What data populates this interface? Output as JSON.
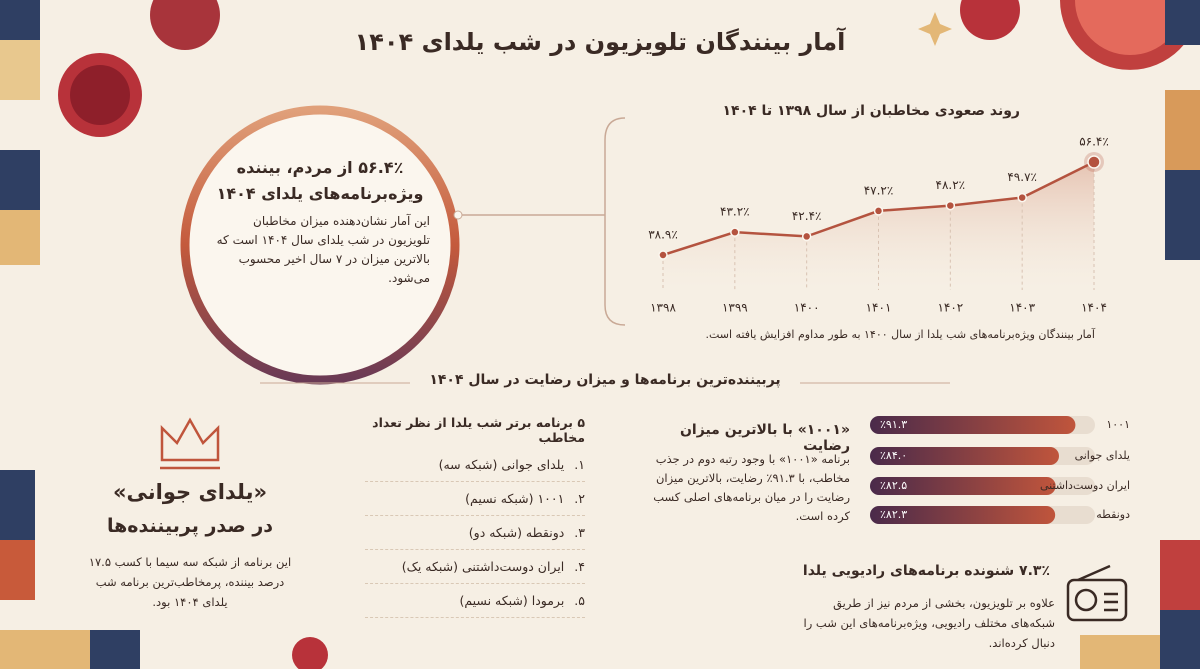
{
  "header": {
    "title": "آمار بینندگان تلویزیون در شب یلدای ۱۴۰۴"
  },
  "highlight": {
    "headline": "۵۶.۴٪ از مردم، بیننده ویژه‌برنامه‌های یلدای ۱۴۰۴",
    "body": "این آمار نشان‌دهنده میزان مخاطبان تلویزیون در شب یلدای سال ۱۴۰۴ است که بالاترین میزان در ۷ سال اخیر محسوب می‌شود."
  },
  "section": {
    "title": "پربیننده‌ترین برنامه‌ها و میزان رضایت در سال ۱۴۰۴"
  },
  "top_show": {
    "headline": "«یلدای جوانی»",
    "subheadline": "در صدر پربیننده‌ها",
    "body": "این برنامه از شبکه سه سیما با کسب ۱۷.۵ درصد بیننده، پرمخاطب‌ترین برنامه شب یلدای ۱۴۰۴ بود."
  },
  "top_list": {
    "title": "۵ برنامه برتر شب یلدا از نظر تعداد مخاطب",
    "items": [
      {
        "num": "۱.",
        "text": "یلدای جوانی (شبکه سه)"
      },
      {
        "num": "۲.",
        "text": "۱۰۰۱ (شبکه نسیم)"
      },
      {
        "num": "۳.",
        "text": "دونقطه (شبکه دو)"
      },
      {
        "num": "۴.",
        "text": "ایران دوست‌داشتنی (شبکه یک)"
      },
      {
        "num": "۵.",
        "text": "برمودا (شبکه نسیم)"
      }
    ]
  },
  "satisfaction": {
    "title": "«۱۰۰۱» با بالاترین میزان رضایت",
    "body": "برنامه «۱۰۰۱» با وجود رتبه دوم در جذب مخاطب، با ۹۱.۳٪ رضایت، بالاترین میزان رضایت را در میان برنامه‌های اصلی کسب کرده است."
  },
  "radio": {
    "title": "۷.۳٪ شنونده برنامه‌های رادیویی یلدا",
    "body": "علاوه بر تلویزیون، بخشی از مردم نیز از طریق شبکه‌های مختلف رادیویی، ویژه‌برنامه‌های این شب را دنبال کرده‌اند."
  },
  "chart_data": [
    {
      "type": "line",
      "title": "روند صعودی مخاطبان از سال ۱۳۹۸ تا ۱۴۰۴",
      "annotation": "آمار بینندگان ویژه‌برنامه‌های شب یلدا از سال ۱۴۰۰ به طور مداوم افزایش یافته است.",
      "categories": [
        "۱۳۹۸",
        "۱۳۹۹",
        "۱۴۰۰",
        "۱۴۰۱",
        "۱۴۰۲",
        "۱۴۰۳",
        "۱۴۰۴"
      ],
      "values": [
        38.9,
        43.2,
        42.4,
        47.2,
        48.2,
        49.7,
        56.4
      ],
      "value_labels": [
        "۳۸.۹٪",
        "۴۳.۲٪",
        "۴۲.۴٪",
        "۴۷.۲٪",
        "۴۸.۲٪",
        "۴۹.۷٪",
        "۵۶.۴٪"
      ],
      "color": "#b4533f"
    },
    {
      "type": "hbar",
      "categories": [
        "۱۰۰۱",
        "یلدای جوانی",
        "ایران دوست‌داشتنی",
        "دونقطه"
      ],
      "values": [
        91.3,
        84.0,
        82.5,
        82.3
      ],
      "value_labels": [
        "٪۹۱.۳",
        "٪۸۴.۰",
        "٪۸۲.۵",
        "٪۸۲.۳"
      ],
      "xlim": [
        0,
        100
      ],
      "color": "#c0553c"
    }
  ]
}
